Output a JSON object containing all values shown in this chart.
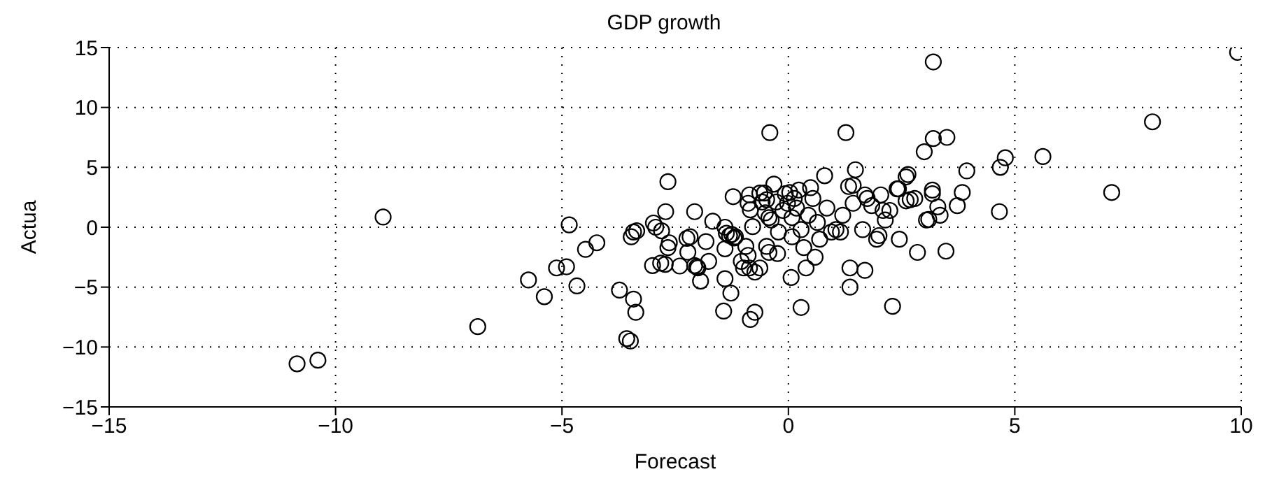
{
  "chart_data": {
    "type": "scatter",
    "title": "GDP growth",
    "xlabel": "Forecast",
    "ylabel": "Actua",
    "xlim": [
      -15,
      10
    ],
    "xticks": [
      -15,
      -10,
      -5,
      0,
      5,
      10
    ],
    "ylim": [
      -15,
      15
    ],
    "yticks": [
      -15,
      -10,
      -5,
      0,
      5,
      10,
      15
    ],
    "grid": true,
    "marker": "circle",
    "legend": false,
    "series": [
      {
        "color": "#000000",
        "x": [
          -10.85,
          -10.39,
          -8.95,
          -6.86,
          -5.74,
          -5.39,
          -5.12,
          -4.9,
          -4.84,
          -4.67,
          -4.48,
          -4.23,
          -3.73,
          -3.47,
          -3.42,
          -3.35,
          -3.42,
          -3.37,
          -3.57,
          -3.49,
          -2.98,
          -2.93,
          -2.8,
          -3.0,
          -2.82,
          -2.72,
          -2.66,
          -2.71,
          -2.66,
          -2.63,
          -2.07,
          -2.4,
          -2.24,
          -2.17,
          -2.22,
          -2.07,
          -2.02,
          -2.0,
          -1.94,
          -1.82,
          -1.76,
          -1.67,
          -1.4,
          -1.37,
          -1.3,
          -1.25,
          -1.2,
          -1.17,
          -1.4,
          -1.4,
          -1.43,
          -1.27,
          -1.22,
          -1.04,
          -0.99,
          -0.94,
          -0.89,
          -0.86,
          -0.86,
          -0.89,
          -0.84,
          -0.79,
          -0.74,
          -0.84,
          -0.74,
          -0.63,
          -0.63,
          -0.58,
          -0.53,
          -0.48,
          -0.51,
          -0.48,
          -0.43,
          -0.43,
          -0.38,
          -0.32,
          -0.27,
          -0.24,
          -0.22,
          -0.12,
          -0.07,
          -0.02,
          0.03,
          0.08,
          0.08,
          0.06,
          0.13,
          0.18,
          0.23,
          0.28,
          0.28,
          0.34,
          0.39,
          0.44,
          0.49,
          0.54,
          0.59,
          0.64,
          0.69,
          0.8,
          0.85,
          0.95,
          1.05,
          1.15,
          1.2,
          1.33,
          1.36,
          1.36,
          1.43,
          1.48,
          1.43,
          1.64,
          1.69,
          1.69,
          1.74,
          1.84,
          1.95,
          2.0,
          2.04,
          2.09,
          2.14,
          2.24,
          2.3,
          2.4,
          2.45,
          2.6,
          2.6,
          2.69,
          2.79,
          2.85,
          3.0,
          3.05,
          -0.41,
          1.27,
          3.2,
          9.92,
          8.04,
          3.2,
          3.5,
          4.79,
          4.68,
          5.62,
          7.14,
          4.66,
          3.94,
          3.84,
          3.73,
          3.35,
          3.1,
          3.3,
          3.18,
          3.18,
          2.64,
          2.43,
          3.48
        ],
        "values": [
          -11.4,
          -11.1,
          0.85,
          -8.3,
          -4.4,
          -5.8,
          -3.4,
          -3.3,
          0.2,
          -4.9,
          -1.85,
          -1.3,
          -5.25,
          -0.8,
          -0.4,
          -0.3,
          -6.0,
          -7.1,
          -9.3,
          -9.5,
          0.35,
          0,
          -0.3,
          -3.2,
          -3.0,
          -3.1,
          3.8,
          1.3,
          -1.7,
          -1.3,
          1.3,
          -3.24,
          -0.93,
          -0.8,
          -2.08,
          -3.2,
          -3.3,
          -3.4,
          -4.5,
          -1.2,
          -2.85,
          0.5,
          0,
          -0.5,
          -0.7,
          -0.6,
          -0.9,
          -0.8,
          -1.8,
          -4.3,
          -7.0,
          -5.5,
          2.55,
          -2.85,
          -3.4,
          -1.6,
          -2.35,
          -3.4,
          2.7,
          2.0,
          1.45,
          0.05,
          -7.1,
          -7.7,
          -3.75,
          -3.4,
          2.85,
          2.1,
          2.85,
          2.3,
          1.2,
          -1.6,
          0.8,
          -2.1,
          0.6,
          3.6,
          2.1,
          -2.2,
          -0.4,
          1.4,
          2.8,
          2.0,
          2.9,
          0.8,
          -0.8,
          -4.2,
          2.4,
          1.6,
          3.1,
          -0.2,
          -6.7,
          -1.7,
          -3.4,
          1.0,
          3.3,
          2.4,
          -2.5,
          0.4,
          -1.0,
          4.3,
          1.6,
          -0.4,
          -0.2,
          -0.4,
          1.0,
          3.4,
          -3.4,
          -5.0,
          3.5,
          4.8,
          2.0,
          -0.2,
          -3.6,
          2.7,
          2.4,
          1.8,
          -1.0,
          -0.7,
          2.7,
          1.4,
          0.6,
          1.4,
          -6.6,
          3.2,
          -1.0,
          4.2,
          2.2,
          2.3,
          2.4,
          -2.1,
          6.3,
          0.6,
          7.9,
          7.9,
          13.8,
          14.6,
          8.8,
          7.4,
          7.5,
          5.8,
          5.0,
          5.9,
          2.9,
          1.3,
          4.7,
          2.9,
          1.8,
          1.0,
          0.65,
          1.7,
          3.1,
          2.8,
          4.4,
          3.2,
          -2.0
        ]
      }
    ]
  }
}
